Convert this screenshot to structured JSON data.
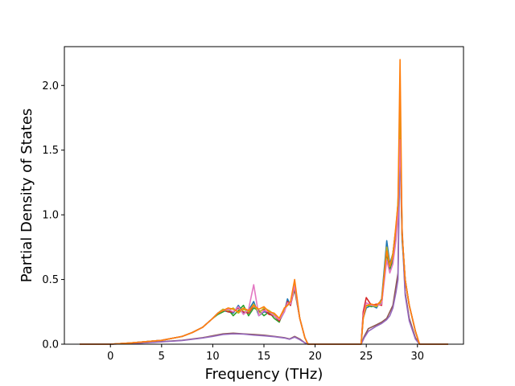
{
  "chart_data": {
    "type": "line",
    "title": "",
    "xlabel": "Frequency (THz)",
    "ylabel": "Partial Density of States",
    "xlim": [
      -4.5,
      34.5
    ],
    "ylim": [
      0.0,
      2.3
    ],
    "xticks": [
      {
        "value": 0,
        "label": "0"
      },
      {
        "value": 5,
        "label": "5"
      },
      {
        "value": 10,
        "label": "10"
      },
      {
        "value": 15,
        "label": "15"
      },
      {
        "value": 20,
        "label": "20"
      },
      {
        "value": 25,
        "label": "25"
      },
      {
        "value": 30,
        "label": "30"
      }
    ],
    "yticks": [
      {
        "value": 0.0,
        "label": "0.0"
      },
      {
        "value": 0.5,
        "label": "0.5"
      },
      {
        "value": 1.0,
        "label": "1.0"
      },
      {
        "value": 1.5,
        "label": "1.5"
      },
      {
        "value": 2.0,
        "label": "2.0"
      }
    ],
    "grid": false,
    "legend": "none",
    "palette": [
      "#1f77b4",
      "#ff7f0e",
      "#2ca02c",
      "#d62728",
      "#9467bd",
      "#8c564b",
      "#e377c2",
      "#7f7f7f",
      "#bcbd22",
      "#17becf"
    ],
    "series": [
      {
        "color": "#8c564b",
        "x": [
          -3,
          0,
          2,
          5,
          7,
          9,
          10,
          11,
          12,
          13,
          14,
          15,
          16,
          17,
          17.5,
          18,
          18.5,
          19,
          19.5,
          24.5,
          24.8,
          25.2,
          26,
          26.5,
          27,
          27.3,
          27.6,
          27.9,
          28.1,
          28.3,
          28.5,
          28.8,
          29.2,
          29.8,
          30.2,
          33
        ],
        "y": [
          0,
          0,
          0.005,
          0.02,
          0.03,
          0.05,
          0.065,
          0.08,
          0.085,
          0.08,
          0.075,
          0.07,
          0.06,
          0.05,
          0.04,
          0.06,
          0.04,
          0.01,
          0,
          0,
          0.06,
          0.12,
          0.15,
          0.17,
          0.2,
          0.25,
          0.3,
          0.45,
          0.55,
          1.78,
          0.9,
          0.4,
          0.2,
          0.05,
          0,
          0
        ]
      },
      {
        "color": "#9467bd",
        "x": [
          -3,
          0,
          2,
          5,
          7,
          9,
          10,
          11,
          12,
          13,
          14,
          15,
          16,
          17,
          17.5,
          18,
          18.5,
          19,
          19.5,
          24.5,
          24.8,
          25.2,
          26,
          26.5,
          27,
          27.3,
          27.6,
          27.9,
          28.1,
          28.3,
          28.5,
          28.8,
          29.2,
          29.8,
          30.2,
          33
        ],
        "y": [
          0,
          0,
          0.005,
          0.018,
          0.028,
          0.048,
          0.06,
          0.075,
          0.08,
          0.078,
          0.07,
          0.065,
          0.058,
          0.048,
          0.038,
          0.055,
          0.035,
          0.01,
          0,
          0,
          0.05,
          0.1,
          0.14,
          0.16,
          0.19,
          0.22,
          0.28,
          0.4,
          0.5,
          1.6,
          0.85,
          0.38,
          0.18,
          0.04,
          0,
          0
        ]
      },
      {
        "color": "#1f77b4",
        "x": [
          -3,
          0,
          2,
          5,
          7,
          8,
          9,
          10,
          10.5,
          11,
          11.5,
          12,
          12.5,
          13,
          13.5,
          14,
          14.5,
          15,
          15.5,
          16,
          16.5,
          17,
          17.3,
          17.6,
          18,
          18.5,
          19,
          19.3,
          24.5,
          24.7,
          25,
          25.5,
          26,
          26.5,
          27,
          27.3,
          27.6,
          27.9,
          28.1,
          28.3,
          28.5,
          28.8,
          29.2,
          29.8,
          30.2,
          33
        ],
        "y": [
          0,
          0,
          0.01,
          0.03,
          0.06,
          0.09,
          0.13,
          0.2,
          0.24,
          0.26,
          0.25,
          0.24,
          0.3,
          0.24,
          0.26,
          0.33,
          0.22,
          0.25,
          0.24,
          0.22,
          0.18,
          0.25,
          0.35,
          0.3,
          0.45,
          0.2,
          0.05,
          0,
          0,
          0.2,
          0.28,
          0.3,
          0.28,
          0.35,
          0.8,
          0.62,
          0.7,
          0.9,
          1.0,
          1.5,
          0.8,
          0.5,
          0.3,
          0.1,
          0,
          0
        ]
      },
      {
        "color": "#2ca02c",
        "x": [
          -3,
          0,
          2,
          5,
          7,
          8,
          9,
          10,
          10.5,
          11,
          11.5,
          12,
          12.5,
          13,
          13.5,
          14,
          14.5,
          15,
          15.5,
          16,
          16.5,
          17,
          17.3,
          17.6,
          18,
          18.5,
          19,
          19.3,
          24.5,
          24.7,
          25,
          25.5,
          26,
          26.5,
          27,
          27.3,
          27.6,
          27.9,
          28.1,
          28.3,
          28.5,
          28.8,
          29.2,
          29.8,
          30.2,
          33
        ],
        "y": [
          0,
          0,
          0.01,
          0.03,
          0.06,
          0.09,
          0.13,
          0.2,
          0.23,
          0.25,
          0.27,
          0.22,
          0.26,
          0.3,
          0.22,
          0.28,
          0.26,
          0.22,
          0.25,
          0.2,
          0.17,
          0.28,
          0.3,
          0.32,
          0.42,
          0.2,
          0.05,
          0,
          0,
          0.22,
          0.3,
          0.29,
          0.3,
          0.32,
          0.7,
          0.58,
          0.65,
          0.85,
          1.1,
          1.6,
          0.85,
          0.5,
          0.3,
          0.1,
          0,
          0
        ]
      },
      {
        "color": "#d62728",
        "x": [
          -3,
          0,
          2,
          5,
          7,
          8,
          9,
          10,
          10.5,
          11,
          11.5,
          12,
          12.5,
          13,
          13.5,
          14,
          14.5,
          15,
          15.5,
          16,
          16.5,
          17,
          17.3,
          17.6,
          18,
          18.5,
          19,
          19.3,
          24.5,
          24.7,
          25,
          25.5,
          26,
          26.5,
          27,
          27.3,
          27.6,
          27.9,
          28.1,
          28.3,
          28.5,
          28.8,
          29.2,
          29.8,
          30.2,
          33
        ],
        "y": [
          0,
          0,
          0.01,
          0.03,
          0.06,
          0.09,
          0.13,
          0.2,
          0.24,
          0.27,
          0.25,
          0.25,
          0.28,
          0.25,
          0.24,
          0.3,
          0.25,
          0.27,
          0.23,
          0.22,
          0.18,
          0.26,
          0.33,
          0.3,
          0.44,
          0.2,
          0.05,
          0,
          0,
          0.25,
          0.36,
          0.3,
          0.31,
          0.3,
          0.75,
          0.6,
          0.7,
          0.88,
          1.05,
          1.68,
          0.85,
          0.5,
          0.3,
          0.1,
          0,
          0
        ]
      },
      {
        "color": "#bcbd22",
        "x": [
          -3,
          0,
          2,
          5,
          7,
          8,
          9,
          10,
          10.5,
          11,
          11.5,
          12,
          12.5,
          13,
          13.5,
          14,
          14.5,
          15,
          15.5,
          16,
          16.5,
          17,
          17.3,
          17.6,
          18,
          18.5,
          19,
          19.3,
          24.5,
          24.7,
          25,
          25.5,
          26,
          26.5,
          27,
          27.3,
          27.6,
          27.9,
          28.1,
          28.3,
          28.5,
          28.8,
          29.2,
          29.8,
          30.2,
          33
        ],
        "y": [
          0,
          0,
          0.01,
          0.03,
          0.06,
          0.09,
          0.13,
          0.2,
          0.24,
          0.27,
          0.26,
          0.28,
          0.24,
          0.27,
          0.25,
          0.31,
          0.24,
          0.28,
          0.26,
          0.23,
          0.2,
          0.27,
          0.3,
          0.32,
          0.48,
          0.2,
          0.05,
          0,
          0,
          0.2,
          0.3,
          0.3,
          0.29,
          0.33,
          0.75,
          0.6,
          0.7,
          0.9,
          1.1,
          1.88,
          0.85,
          0.5,
          0.3,
          0.1,
          0,
          0
        ]
      },
      {
        "color": "#e377c2",
        "x": [
          -3,
          0,
          2,
          5,
          7,
          8,
          9,
          10,
          10.5,
          11,
          11.5,
          12,
          12.5,
          13,
          13.5,
          14,
          14.5,
          15,
          15.5,
          16,
          16.5,
          17,
          17.3,
          17.6,
          18,
          18.5,
          19,
          19.3,
          24.5,
          24.7,
          25,
          25.5,
          26,
          26.5,
          27,
          27.3,
          27.6,
          27.9,
          28.1,
          28.3,
          28.5,
          28.8,
          29.2,
          29.8,
          30.2,
          33
        ],
        "y": [
          0,
          0,
          0.01,
          0.03,
          0.06,
          0.09,
          0.13,
          0.2,
          0.24,
          0.26,
          0.27,
          0.25,
          0.29,
          0.23,
          0.27,
          0.46,
          0.22,
          0.26,
          0.25,
          0.22,
          0.19,
          0.25,
          0.32,
          0.31,
          0.45,
          0.2,
          0.05,
          0,
          0,
          0.22,
          0.32,
          0.3,
          0.3,
          0.31,
          0.65,
          0.55,
          0.62,
          0.8,
          1.0,
          1.58,
          0.85,
          0.5,
          0.3,
          0.1,
          0,
          0
        ]
      },
      {
        "color": "#ff7f0e",
        "x": [
          -3,
          0,
          2,
          5,
          7,
          8,
          9,
          10,
          10.5,
          11,
          11.5,
          12,
          12.5,
          13,
          13.5,
          14,
          14.5,
          15,
          15.5,
          16,
          16.5,
          17,
          17.3,
          17.6,
          18,
          18.5,
          19,
          19.3,
          24.5,
          24.7,
          25,
          25.5,
          26,
          26.5,
          27,
          27.3,
          27.6,
          27.9,
          28.1,
          28.3,
          28.5,
          28.8,
          29.2,
          29.8,
          30.2,
          33
        ],
        "y": [
          0,
          0,
          0.01,
          0.03,
          0.06,
          0.09,
          0.13,
          0.2,
          0.24,
          0.26,
          0.28,
          0.27,
          0.25,
          0.28,
          0.26,
          0.3,
          0.27,
          0.29,
          0.25,
          0.24,
          0.2,
          0.28,
          0.3,
          0.33,
          0.5,
          0.2,
          0.05,
          0,
          0,
          0.2,
          0.3,
          0.31,
          0.3,
          0.34,
          0.72,
          0.6,
          0.68,
          0.92,
          1.08,
          2.2,
          0.85,
          0.5,
          0.3,
          0.1,
          0,
          0
        ]
      }
    ]
  }
}
